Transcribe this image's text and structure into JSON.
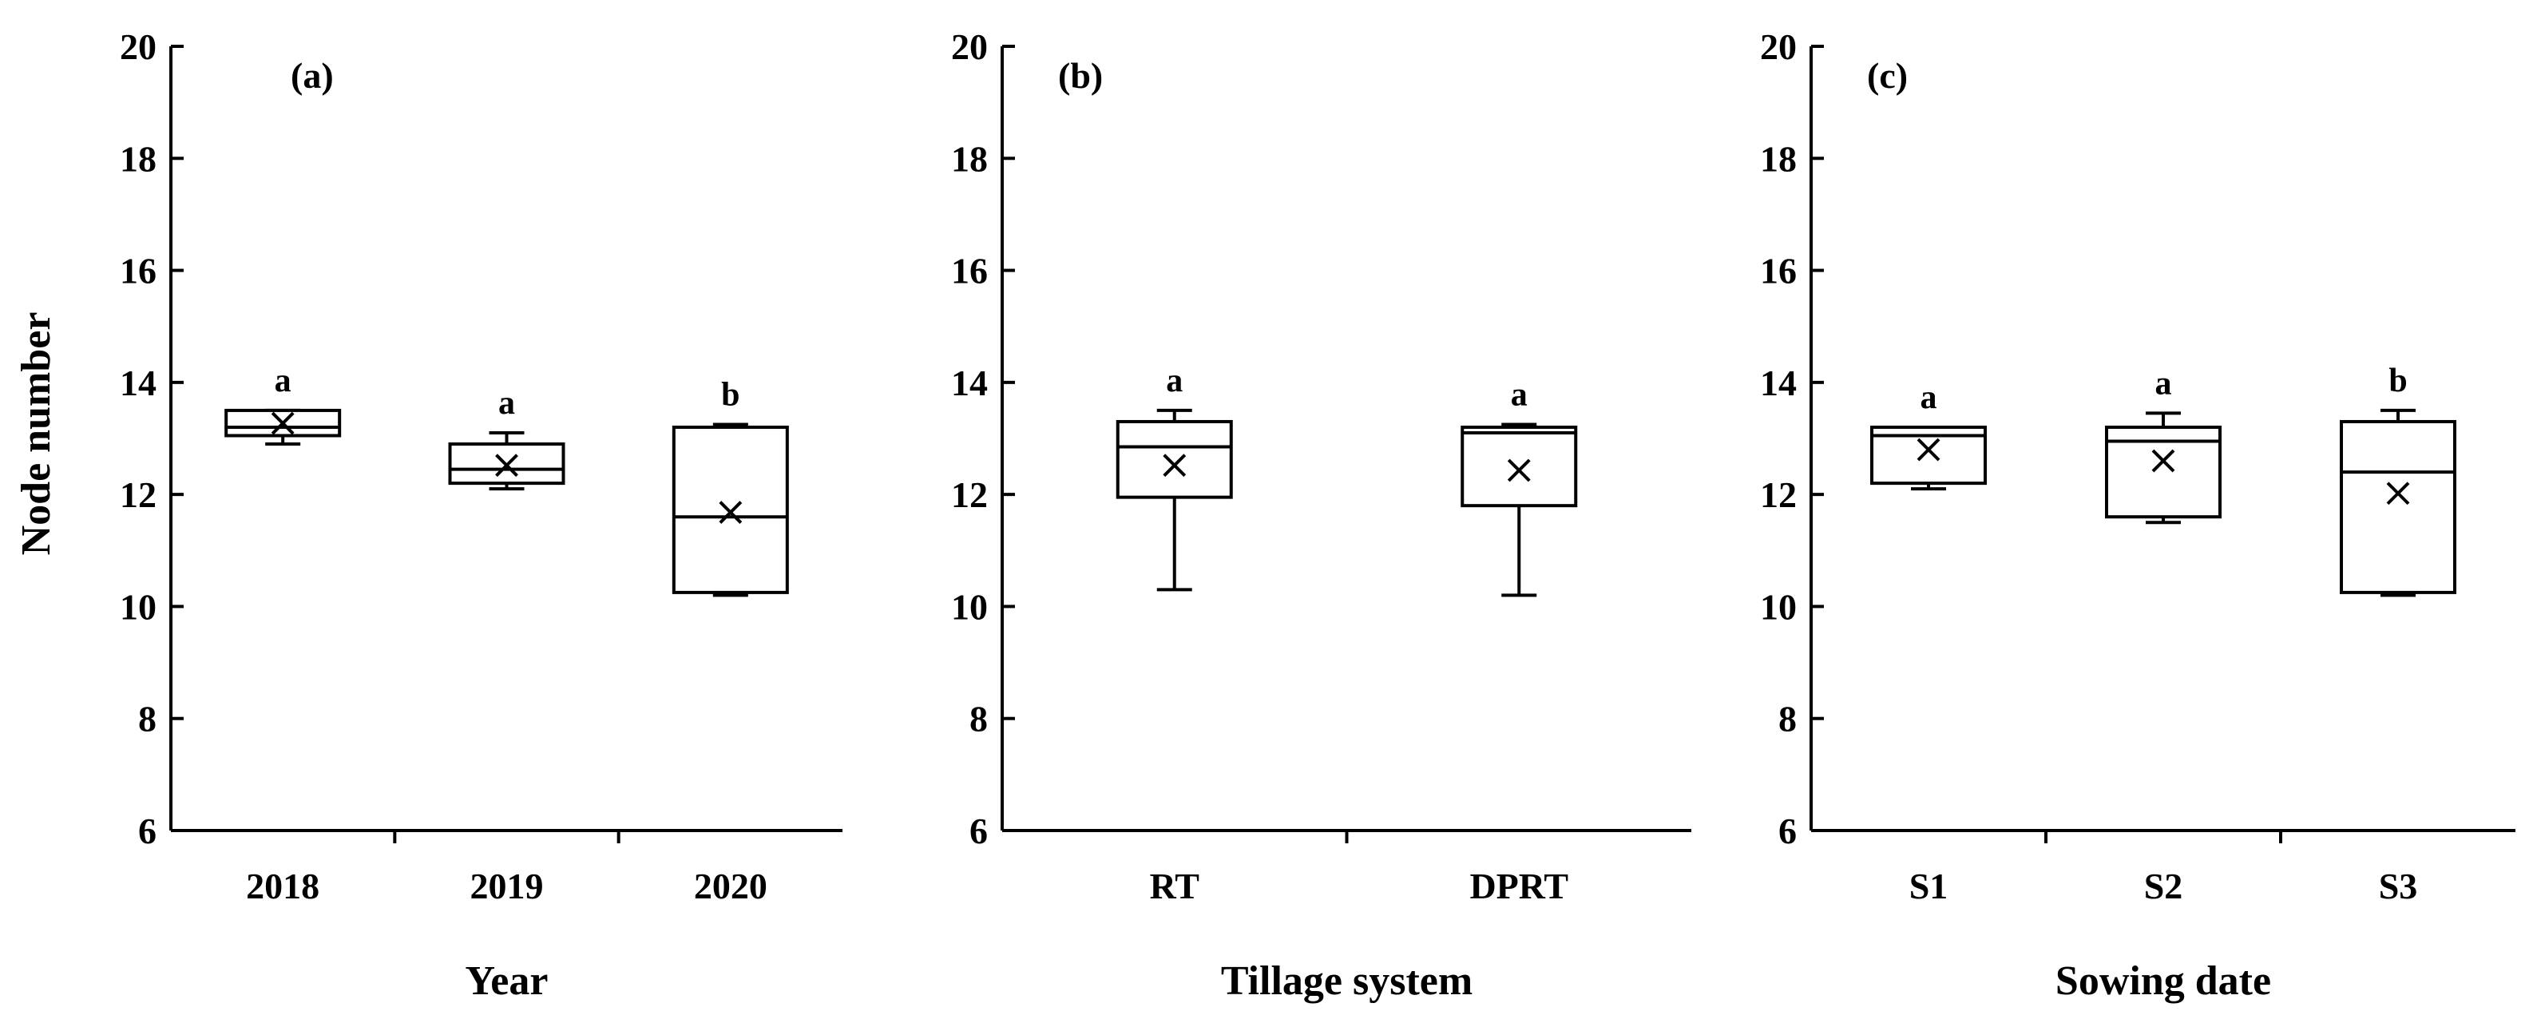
{
  "chart_data": [
    {
      "type": "box",
      "panel_label": "(a)",
      "xlabel": "Year",
      "ylabel": "Node number",
      "ylim": [
        6,
        20
      ],
      "yticks": [
        6,
        8,
        10,
        12,
        14,
        16,
        18,
        20
      ],
      "categories": [
        "2018",
        "2019",
        "2020"
      ],
      "boxes": [
        {
          "category": "2018",
          "min": 12.9,
          "q1": 13.05,
          "median": 13.2,
          "q3": 13.5,
          "max": 13.5,
          "mean": 13.27,
          "letter": "a"
        },
        {
          "category": "2019",
          "min": 12.1,
          "q1": 12.2,
          "median": 12.45,
          "q3": 12.9,
          "max": 13.1,
          "mean": 12.52,
          "letter": "a"
        },
        {
          "category": "2020",
          "min": 10.2,
          "q1": 10.25,
          "median": 11.6,
          "q3": 13.2,
          "max": 13.25,
          "mean": 11.68,
          "letter": "b"
        }
      ]
    },
    {
      "type": "box",
      "panel_label": "(b)",
      "xlabel": "Tillage system",
      "ylabel": "",
      "ylim": [
        6,
        20
      ],
      "yticks": [
        6,
        8,
        10,
        12,
        14,
        16,
        18,
        20
      ],
      "categories": [
        "RT",
        "DPRT"
      ],
      "boxes": [
        {
          "category": "RT",
          "min": 10.3,
          "q1": 11.95,
          "median": 12.85,
          "q3": 13.3,
          "max": 13.5,
          "mean": 12.52,
          "letter": "a"
        },
        {
          "category": "DPRT",
          "min": 10.2,
          "q1": 11.8,
          "median": 13.1,
          "q3": 13.2,
          "max": 13.25,
          "mean": 12.43,
          "letter": "a"
        }
      ]
    },
    {
      "type": "box",
      "panel_label": "(c)",
      "xlabel": "Sowing date",
      "ylabel": "",
      "ylim": [
        6,
        20
      ],
      "yticks": [
        6,
        8,
        10,
        12,
        14,
        16,
        18,
        20
      ],
      "categories": [
        "S1",
        "S2",
        "S3"
      ],
      "boxes": [
        {
          "category": "S1",
          "min": 12.1,
          "q1": 12.2,
          "median": 13.05,
          "q3": 13.2,
          "max": 13.2,
          "mean": 12.8,
          "letter": "a"
        },
        {
          "category": "S2",
          "min": 11.5,
          "q1": 11.6,
          "median": 12.95,
          "q3": 13.2,
          "max": 13.45,
          "mean": 12.6,
          "letter": "a"
        },
        {
          "category": "S3",
          "min": 10.2,
          "q1": 10.25,
          "median": 12.4,
          "q3": 13.3,
          "max": 13.5,
          "mean": 12.02,
          "letter": "b"
        }
      ]
    }
  ]
}
